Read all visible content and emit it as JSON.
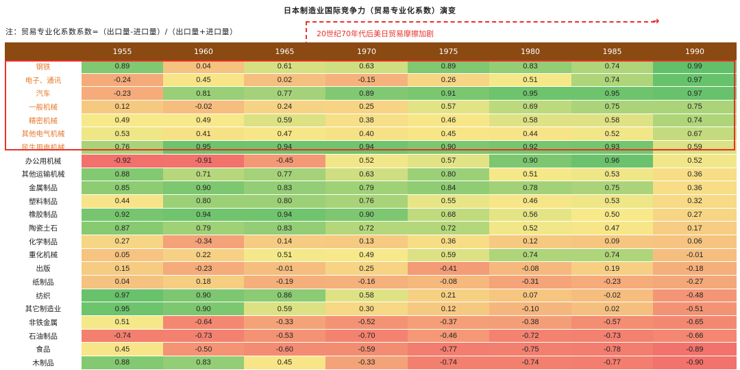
{
  "title": "日本制造业国际竞争力（贸易专业化系数）演变",
  "note": "注：贸易专业化系数系数=（出口量-进口量）/（出口量+进口量）",
  "annotation": "20世纪70年代后美日贸易摩擦加剧",
  "colors": {
    "header_bg": "#8a4a12",
    "highlight_box": "#e8302a",
    "highlight_label": "#e6792b",
    "scale_low": "#f26a6a",
    "scale_mid": "#f7e989",
    "scale_high": "#5fbf6a"
  },
  "highlighted_rows": 7,
  "chart_data": {
    "type": "heatmap",
    "columns": [
      "1955",
      "1960",
      "1965",
      "1970",
      "1975",
      "1980",
      "1985",
      "1990"
    ],
    "rows": [
      {
        "label": "钢铁",
        "values": [
          "0.89",
          "0.04",
          "0.61",
          "0.63",
          "0.89",
          "0.83",
          "0.74",
          "0.99"
        ]
      },
      {
        "label": "电子、通讯",
        "values": [
          "-0.24",
          "0.45",
          "0.02",
          "-0.15",
          "0.26",
          "0.51",
          "0.74",
          "0.97"
        ]
      },
      {
        "label": "汽车",
        "values": [
          "-0.23",
          "0.81",
          "0.77",
          "0.89",
          "0.91",
          "0.95",
          "0.95",
          "0.97"
        ]
      },
      {
        "label": "一般机械",
        "values": [
          "0.12",
          "-0.02",
          "0.24",
          "0.25",
          "0.57",
          "0.69",
          "0.75",
          "0.75"
        ]
      },
      {
        "label": "精密机械",
        "values": [
          "0.49",
          "0.49",
          "0.59",
          "0.38",
          "0.46",
          "0.58",
          "0.58",
          "0.74"
        ]
      },
      {
        "label": "其他电气机械",
        "values": [
          "0.53",
          "0.41",
          "0.47",
          "0.40",
          "0.45",
          "0.44",
          "0.52",
          "0.67"
        ]
      },
      {
        "label": "民生用电机械",
        "values": [
          "0.76",
          "0.95",
          "0.94",
          "0.94",
          "0.90",
          "0.92",
          "0.93",
          "0.59"
        ]
      },
      {
        "label": "办公用机械",
        "values": [
          "-0.92",
          "-0.91",
          "-0.45",
          "0.52",
          "0.57",
          "0.90",
          "0.96",
          "0.52"
        ]
      },
      {
        "label": "其他运输机械",
        "values": [
          "0.88",
          "0.71",
          "0.77",
          "0.63",
          "0.80",
          "0.51",
          "0.53",
          "0.36"
        ]
      },
      {
        "label": "金属制品",
        "values": [
          "0.85",
          "0.90",
          "0.83",
          "0.79",
          "0.84",
          "0.78",
          "0.75",
          "0.36"
        ]
      },
      {
        "label": "塑料制品",
        "values": [
          "0.44",
          "0.80",
          "0.80",
          "0.76",
          "0.55",
          "0.46",
          "0.53",
          "0.32"
        ]
      },
      {
        "label": "橡胶制品",
        "values": [
          "0.92",
          "0.94",
          "0.94",
          "0.90",
          "0.68",
          "0.56",
          "0.50",
          "0.27"
        ]
      },
      {
        "label": "陶瓷土石",
        "values": [
          "0.87",
          "0.79",
          "0.83",
          "0.72",
          "0.72",
          "0.52",
          "0.47",
          "0.17"
        ]
      },
      {
        "label": "化学制品",
        "values": [
          "0.27",
          "-0.34",
          "0.14",
          "0.13",
          "0.36",
          "0.12",
          "0.09",
          "0.06"
        ]
      },
      {
        "label": "重化机械",
        "values": [
          "0.05",
          "0.22",
          "0.51",
          "0.49",
          "0.59",
          "0.74",
          "0.74",
          "-0.01"
        ]
      },
      {
        "label": "出版",
        "values": [
          "0.15",
          "-0.23",
          "-0.01",
          "0.25",
          "-0.41",
          "-0.08",
          "0.19",
          "-0.18"
        ]
      },
      {
        "label": "纸制品",
        "values": [
          "0.04",
          "0.18",
          "-0.19",
          "-0.16",
          "-0.08",
          "-0.31",
          "-0.23",
          "-0.27"
        ]
      },
      {
        "label": "纺织",
        "values": [
          "0.97",
          "0.90",
          "0.86",
          "0.58",
          "0.21",
          "0.07",
          "-0.02",
          "-0.48"
        ]
      },
      {
        "label": "其它制造业",
        "values": [
          "0.95",
          "0.90",
          "0.59",
          "0.30",
          "0.12",
          "-0.10",
          "0.02",
          "-0.51"
        ]
      },
      {
        "label": "非铁金属",
        "values": [
          "0.51",
          "-0.64",
          "-0.33",
          "-0.52",
          "-0.37",
          "-0.38",
          "-0.57",
          "-0.65"
        ]
      },
      {
        "label": "石油制品",
        "values": [
          "-0.74",
          "-0.73",
          "-0.53",
          "-0.70",
          "-0.46",
          "-0.72",
          "-0.73",
          "-0.66"
        ]
      },
      {
        "label": "食品",
        "values": [
          "0.45",
          "-0.50",
          "-0.60",
          "-0.59",
          "-0.77",
          "-0.75",
          "-0.78",
          "-0.89"
        ]
      },
      {
        "label": "木制品",
        "values": [
          "0.88",
          "0.83",
          "0.45",
          "-0.33",
          "-0.74",
          "-0.74",
          "-0.77",
          "-0.90"
        ]
      }
    ]
  }
}
